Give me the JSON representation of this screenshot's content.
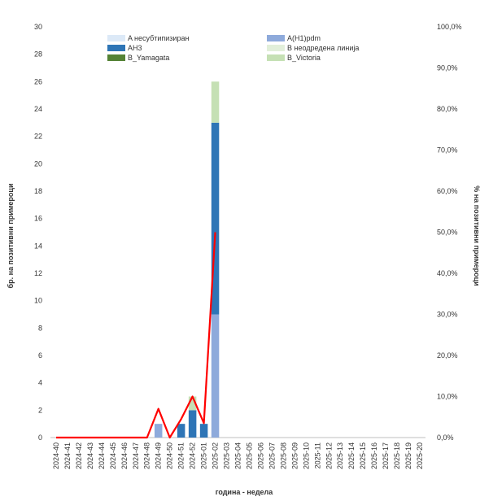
{
  "chart_data": {
    "type": "bar",
    "stacked": true,
    "xlabel": "година - недела",
    "ylabel_left": "бр. на позитивни примероци",
    "ylabel_right": "% на позитивни примероци",
    "ylim_left": [
      0,
      30
    ],
    "ylim_right": [
      0,
      100
    ],
    "yticks_left": [
      "0",
      "2",
      "4",
      "6",
      "8",
      "10",
      "12",
      "14",
      "16",
      "18",
      "20",
      "22",
      "24",
      "26",
      "28",
      "30"
    ],
    "yticks_right": [
      "0,0%",
      "10,0%",
      "20,0%",
      "30,0%",
      "40,0%",
      "50,0%",
      "60,0%",
      "70,0%",
      "80,0%",
      "90,0%",
      "100,0%"
    ],
    "grid": false,
    "legend_position": "top",
    "categories": [
      "2024-40",
      "2024-41",
      "2024-42",
      "2024-43",
      "2024-44",
      "2024-45",
      "2024-46",
      "2024-47",
      "2024-48",
      "2024-49",
      "2024-50",
      "2024-51",
      "2024-52",
      "2025-01",
      "2025-02",
      "2025-03",
      "2025-04",
      "2025-05",
      "2025-06",
      "2025-07",
      "2025-08",
      "2025-09",
      "2025-10",
      "2025-11",
      "2025-12",
      "2025-13",
      "2025-14",
      "2025-15",
      "2025-16",
      "2025-17",
      "2025-18",
      "2025-19",
      "2025-20"
    ],
    "series": [
      {
        "name": "A несубтипизиран",
        "color": "#dce9f7",
        "values": [
          0,
          0,
          0,
          0,
          0,
          0,
          0,
          0,
          0,
          0,
          0,
          0,
          0,
          0,
          0,
          0,
          0,
          0,
          0,
          0,
          0,
          0,
          0,
          0,
          0,
          0,
          0,
          0,
          0,
          0,
          0,
          0,
          0
        ]
      },
      {
        "name": "A(H1)pdm",
        "color": "#8eaadb",
        "values": [
          0,
          0,
          0,
          0,
          0,
          0,
          0,
          0,
          0,
          1,
          0,
          0,
          0,
          0,
          9,
          0,
          0,
          0,
          0,
          0,
          0,
          0,
          0,
          0,
          0,
          0,
          0,
          0,
          0,
          0,
          0,
          0,
          0
        ]
      },
      {
        "name": "AH3",
        "color": "#2e75b6",
        "values": [
          0,
          0,
          0,
          0,
          0,
          0,
          0,
          0,
          0,
          0,
          0,
          1,
          2,
          1,
          14,
          0,
          0,
          0,
          0,
          0,
          0,
          0,
          0,
          0,
          0,
          0,
          0,
          0,
          0,
          0,
          0,
          0,
          0
        ]
      },
      {
        "name": "B неодредена линија",
        "color": "#e2efda",
        "values": [
          0,
          0,
          0,
          0,
          0,
          0,
          0,
          0,
          0,
          0,
          0,
          0,
          0,
          0,
          0,
          0,
          0,
          0,
          0,
          0,
          0,
          0,
          0,
          0,
          0,
          0,
          0,
          0,
          0,
          0,
          0,
          0,
          0
        ]
      },
      {
        "name": "B_Yamagata",
        "color": "#548235",
        "values": [
          0,
          0,
          0,
          0,
          0,
          0,
          0,
          0,
          0,
          0,
          0,
          0,
          0,
          0,
          0,
          0,
          0,
          0,
          0,
          0,
          0,
          0,
          0,
          0,
          0,
          0,
          0,
          0,
          0,
          0,
          0,
          0,
          0
        ]
      },
      {
        "name": "B_Victoria",
        "color": "#c5e0b4",
        "values": [
          0,
          0,
          0,
          0,
          0,
          0,
          0,
          0,
          0,
          0,
          0,
          0,
          1,
          0,
          3,
          0,
          0,
          0,
          0,
          0,
          0,
          0,
          0,
          0,
          0,
          0,
          0,
          0,
          0,
          0,
          0,
          0,
          0
        ]
      }
    ],
    "line": {
      "color": "#ff0000",
      "axis": "right",
      "values": [
        0,
        0,
        0,
        0,
        0,
        0,
        0,
        0,
        0,
        7,
        0,
        4.5,
        10,
        3.5,
        50
      ]
    }
  }
}
